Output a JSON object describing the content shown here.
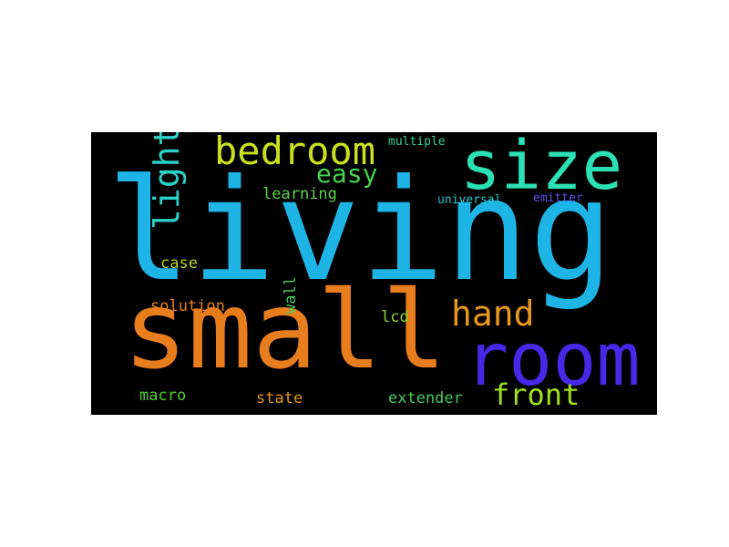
{
  "wordcloud": {
    "background": "#000000",
    "words": {
      "living": {
        "text": "living",
        "color": "#1EB4E6"
      },
      "small": {
        "text": "small",
        "color": "#E87D1E"
      },
      "room": {
        "text": "room",
        "color": "#4628E6"
      },
      "size": {
        "text": "size",
        "color": "#2BE0B4"
      },
      "bedroom": {
        "text": "bedroom",
        "color": "#C8E01E"
      },
      "light": {
        "text": "light",
        "color": "#2BD2C8"
      },
      "easy": {
        "text": "easy",
        "color": "#46D250"
      },
      "hand": {
        "text": "hand",
        "color": "#E8961E"
      },
      "front": {
        "text": "front",
        "color": "#A0E01E"
      },
      "multiple": {
        "text": "multiple",
        "color": "#32D296"
      },
      "learning": {
        "text": "learning",
        "color": "#5AD24B"
      },
      "universal": {
        "text": "universal",
        "color": "#1EC8D2"
      },
      "emitter": {
        "text": "emitter",
        "color": "#5A50E6"
      },
      "case": {
        "text": "case",
        "color": "#B4D21E"
      },
      "wall": {
        "text": "wall",
        "color": "#46C85A"
      },
      "solution": {
        "text": "solution",
        "color": "#E87D1E"
      },
      "lcd": {
        "text": "lcd",
        "color": "#8CD23C"
      },
      "macro": {
        "text": "macro",
        "color": "#50D232"
      },
      "state": {
        "text": "state",
        "color": "#E8961E"
      },
      "extender": {
        "text": "extender",
        "color": "#46C85A"
      }
    }
  }
}
